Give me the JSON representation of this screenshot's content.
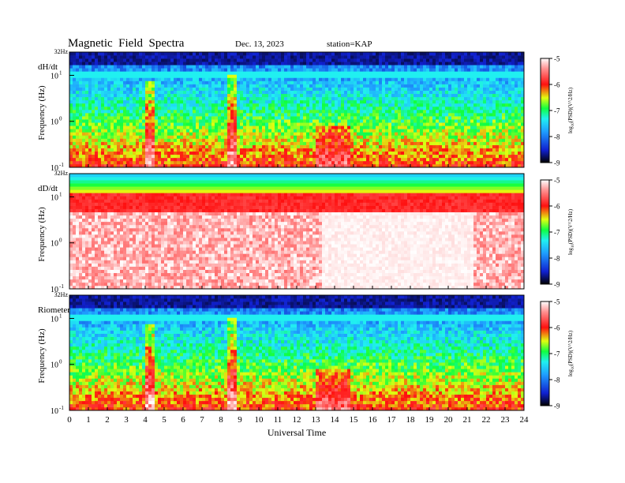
{
  "header": {
    "title": "Magnetic  Field  Spectra",
    "date": "Dec. 13, 2023",
    "station": "station=KAP"
  },
  "chart_data": [
    {
      "type": "heatmap",
      "panel_label": "dH/dt",
      "ylabel": "Frequency  (Hz)",
      "y_scale": "log",
      "ylim": [
        0.1,
        32
      ],
      "y_top_label": "32Hz",
      "y_ticks": [
        {
          "base": "10",
          "exp": "1"
        },
        {
          "base": "10",
          "exp": "0"
        },
        {
          "base": "10",
          "exp": "-1"
        }
      ],
      "xlim": [
        0,
        24
      ],
      "colorbar": {
        "label": "log10(PSD) (V^2/Hz)",
        "range": [
          -9,
          -5
        ],
        "ticks": [
          "-5",
          "-6",
          "-7",
          "-8",
          "-9"
        ]
      }
    },
    {
      "type": "heatmap",
      "panel_label": "dD/dt",
      "ylabel": "Frequency  (Hz)",
      "y_scale": "log",
      "ylim": [
        0.1,
        32
      ],
      "y_top_label": "32Hz",
      "y_ticks": [
        {
          "base": "10",
          "exp": "1"
        },
        {
          "base": "10",
          "exp": "0"
        },
        {
          "base": "10",
          "exp": "-1"
        }
      ],
      "xlim": [
        0,
        24
      ],
      "colorbar": {
        "label": "log10(PSD) (V^2/Hz)",
        "range": [
          -9,
          -5
        ],
        "ticks": [
          "-5",
          "-6",
          "-7",
          "-8",
          "-9"
        ]
      }
    },
    {
      "type": "heatmap",
      "panel_label": "Riometer",
      "ylabel": "Frequency  (Hz)",
      "y_scale": "log",
      "ylim": [
        0.1,
        32
      ],
      "y_top_label": "32Hz",
      "y_ticks": [
        {
          "base": "10",
          "exp": "1"
        },
        {
          "base": "10",
          "exp": "0"
        },
        {
          "base": "10",
          "exp": "-1"
        }
      ],
      "xlim": [
        0,
        24
      ],
      "colorbar": {
        "label": "log10(PSD) (V^2/Hz)",
        "range": [
          -9,
          -5
        ],
        "ticks": [
          "-5",
          "-6",
          "-7",
          "-8",
          "-9"
        ]
      }
    }
  ],
  "x_axis": {
    "label": "Universal Time",
    "ticks": [
      "0",
      "1",
      "2",
      "3",
      "4",
      "5",
      "6",
      "7",
      "8",
      "9",
      "10",
      "11",
      "12",
      "13",
      "14",
      "15",
      "16",
      "17",
      "18",
      "19",
      "20",
      "21",
      "22",
      "23",
      "24"
    ]
  },
  "colorbar_label": {
    "prefix": "log",
    "sub": "10",
    "rest": "(PSD)(V^2/Hz)"
  }
}
